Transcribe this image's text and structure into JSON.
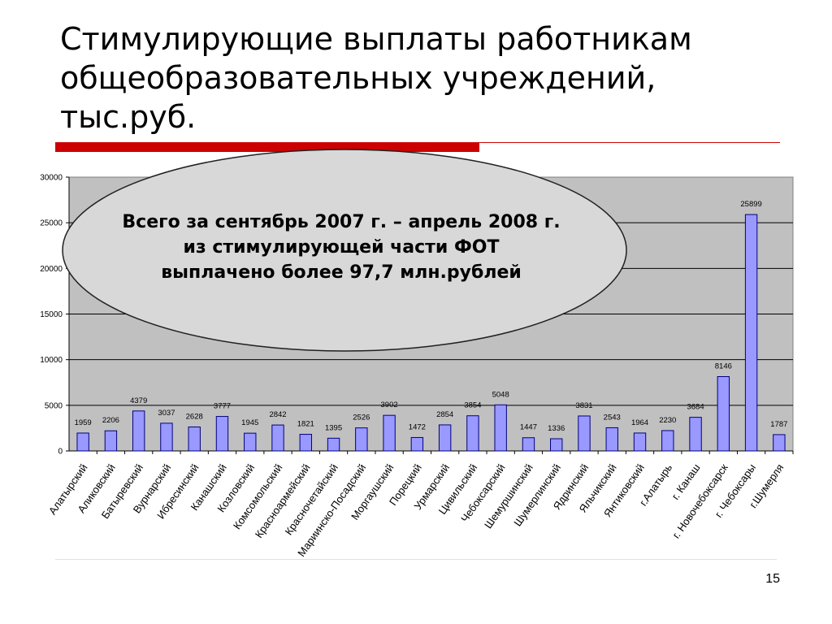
{
  "slide": {
    "title_lines": [
      "Стимулирующие выплаты работникам",
      "общеобразовательных учреждений,",
      "тыс.руб."
    ],
    "page_number": "15"
  },
  "callout": {
    "lines": [
      "Всего за сентябрь 2007 г. – апрель 2008 г.",
      "из стимулирующей части ФОТ",
      "выплачено более 97,7 млн.рублей"
    ]
  },
  "colors": {
    "accent_red": "#cc0000",
    "plot_background": "#c0c0c0",
    "bar_fill": "#9999ff",
    "bar_stroke": "#000080"
  },
  "chart_data": {
    "type": "bar",
    "categories": [
      "Алатырский",
      "Аликовский",
      "Батыревский",
      "Вурнарский",
      "Ибресинский",
      "Канашский",
      "Козловский",
      "Комсомольский",
      "Красноармейский",
      "Красночетайский",
      "Мариинско-Посадский",
      "Моргаушский",
      "Порецкий",
      "Урмарский",
      "Цивильский",
      "Чебоксарский",
      "Шемуршинский",
      "Шумерлинский",
      "Ядринский",
      "Яльчикский",
      "Янтиковский",
      "г.Алатырь",
      "г. Канаш",
      "г. Новочебоксарск",
      "г. Чебоксары",
      "г.Шумерля"
    ],
    "values": [
      1959,
      2206,
      4379,
      3037,
      2628,
      3777,
      1945,
      2842,
      1821,
      1395,
      2526,
      3902,
      1472,
      2854,
      3854,
      5048,
      1447,
      1336,
      3831,
      2543,
      1964,
      2230,
      3684,
      8146,
      25899,
      1787
    ],
    "data_labels": [
      "1959",
      "2206",
      "4379",
      "3037",
      "2628",
      "3777",
      "1945",
      "2842",
      "1821",
      "1395",
      "2526",
      "3902",
      "1472",
      "2854",
      "3854",
      "5048",
      "1447",
      "1336",
      "3831",
      "2543",
      "1964",
      "2230",
      "3684",
      "8146",
      "25899",
      "1787"
    ],
    "yticks": [
      "0",
      "5000",
      "10000",
      "15000",
      "20000",
      "25000",
      "30000"
    ],
    "ylim": [
      0,
      30000
    ],
    "grid": true,
    "legend": "none"
  }
}
